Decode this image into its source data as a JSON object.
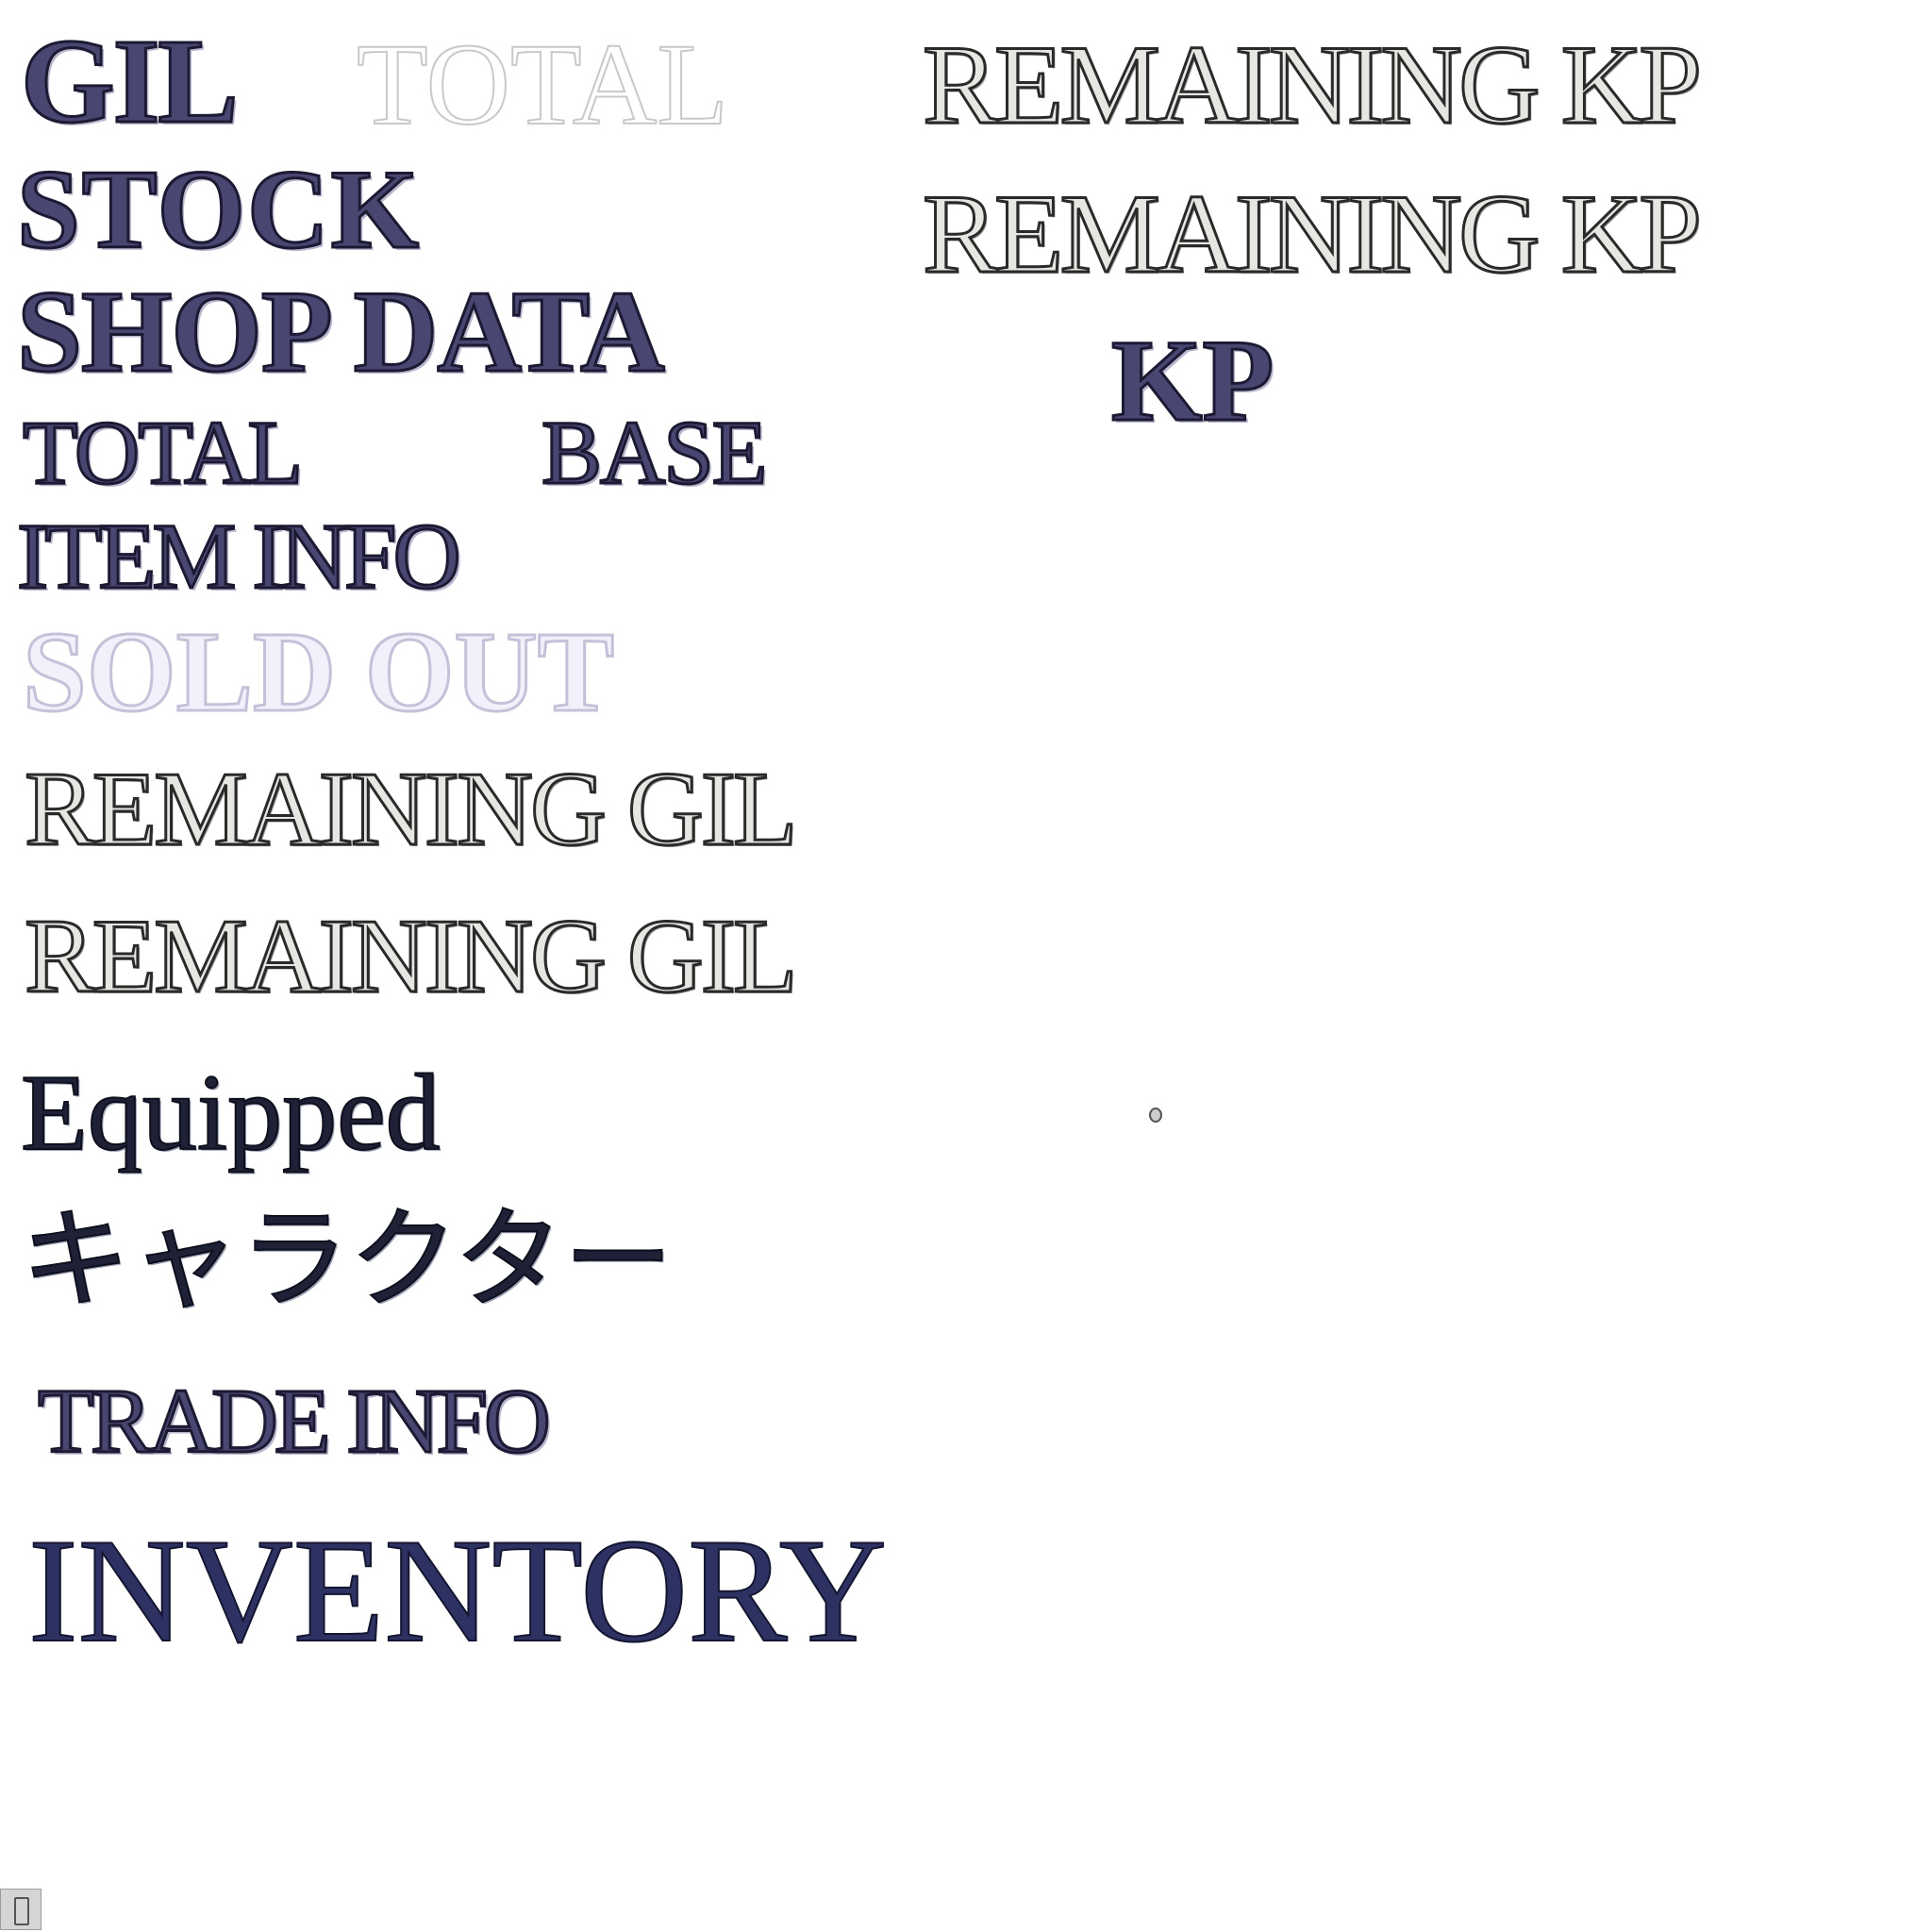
{
  "labels": {
    "gil": "GIL",
    "total_top": "TOTAL",
    "remaining_kp_1": "REMAINING KP",
    "stock": "STOCK",
    "remaining_kp_2": "REMAINING KP",
    "shop_data": "SHOP DATA",
    "kp": "KP",
    "total_mid": "TOTAL",
    "base": "BASE",
    "item_info": "ITEM INFO",
    "sold_out": "SOLD OUT",
    "remaining_gil_1": "REMAINING GIL",
    "remaining_gil_2": "REMAINING GIL",
    "equipped": "Equipped",
    "character_jp": "キャラクター",
    "trade_info": "TRADE INFO",
    "inventory": "INVENTORY"
  },
  "colors": {
    "background": "#ffffff",
    "purple_fill": "#4a4672",
    "silver_fill": "#e7e6e3",
    "ink": "#1f2236",
    "navy": "#2e3262"
  },
  "icons": {
    "corner": "placeholder-glyph-icon"
  }
}
